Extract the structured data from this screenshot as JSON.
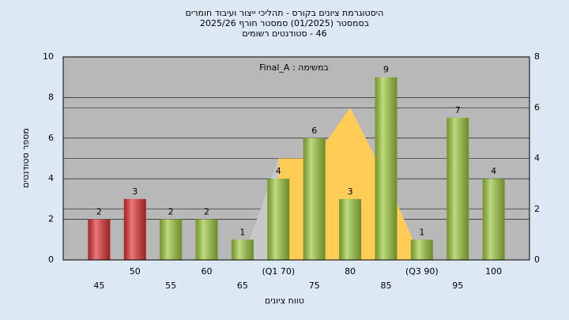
{
  "chart_data": {
    "type": "bar",
    "title": [
      "היסטוגרמת ציונים בקורס - תהליכי ייצור ועיבוד חומרים",
      "בסמסטר  (01/2025)  סמסטר חורף 2025/26",
      "46 - סטודנטים רשומים"
    ],
    "annotation": "במשימה : Final_A",
    "x_label": "טווח ציונים",
    "y_label": "מספר סטודנטים",
    "categories": [
      "45",
      "50",
      "55",
      "60",
      "65",
      "(Q1 70)",
      "75",
      "80",
      "85",
      "(Q3 90)",
      "95",
      "100"
    ],
    "series": [
      {
        "values": [
          2,
          3,
          2,
          2,
          1,
          4,
          6,
          3,
          9,
          1,
          7,
          4
        ],
        "colors": [
          "#e03030",
          "#e03030",
          "#9cc83c",
          "#9cc83c",
          "#9cc83c",
          "#9cc83c",
          "#9cc83c",
          "#9cc83c",
          "#9cc83c",
          "#9cc83c",
          "#9cc83c",
          "#9cc83c"
        ]
      },
      {
        "type": "area",
        "axis": "y2",
        "values": [
          null,
          null,
          null,
          null,
          0,
          4,
          4,
          6,
          3.2,
          0,
          null,
          null
        ],
        "segment_colors": [
          null,
          null,
          null,
          null,
          "#c8c8c8",
          "#ffcc55",
          "#ffcc55",
          "#ffcc55",
          "#ffcc55",
          null,
          null,
          null
        ]
      }
    ],
    "ylim": [
      0,
      10
    ],
    "yticks": [
      0,
      2,
      4,
      6,
      8,
      10
    ],
    "y2lim": [
      0,
      8
    ],
    "y2ticks": [
      0,
      2,
      4,
      6,
      8
    ],
    "grid": true,
    "plot_background": "#b8b8b8"
  }
}
